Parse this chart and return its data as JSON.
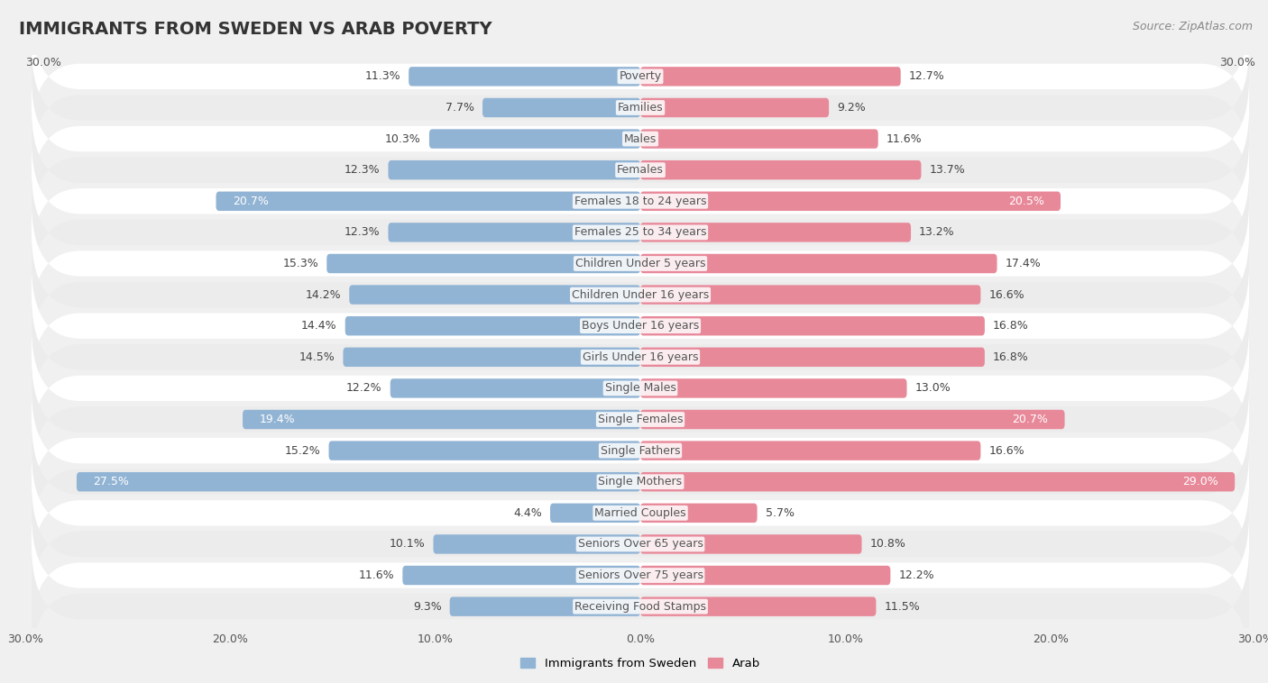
{
  "title": "IMMIGRANTS FROM SWEDEN VS ARAB POVERTY",
  "source": "Source: ZipAtlas.com",
  "categories": [
    "Poverty",
    "Families",
    "Males",
    "Females",
    "Females 18 to 24 years",
    "Females 25 to 34 years",
    "Children Under 5 years",
    "Children Under 16 years",
    "Boys Under 16 years",
    "Girls Under 16 years",
    "Single Males",
    "Single Females",
    "Single Fathers",
    "Single Mothers",
    "Married Couples",
    "Seniors Over 65 years",
    "Seniors Over 75 years",
    "Receiving Food Stamps"
  ],
  "sweden_values": [
    11.3,
    7.7,
    10.3,
    12.3,
    20.7,
    12.3,
    15.3,
    14.2,
    14.4,
    14.5,
    12.2,
    19.4,
    15.2,
    27.5,
    4.4,
    10.1,
    11.6,
    9.3
  ],
  "arab_values": [
    12.7,
    9.2,
    11.6,
    13.7,
    20.5,
    13.2,
    17.4,
    16.6,
    16.8,
    16.8,
    13.0,
    20.7,
    16.6,
    29.0,
    5.7,
    10.8,
    12.2,
    11.5
  ],
  "sweden_color": "#92b4d4",
  "arab_color": "#e8899a",
  "background_color": "#f0f0f0",
  "row_bg_light": "#f8f8f8",
  "row_bg_dark": "#e8e8e8",
  "xlim": 30.0,
  "legend_sweden": "Immigrants from Sweden",
  "legend_arab": "Arab",
  "title_fontsize": 14,
  "source_fontsize": 9,
  "axis_label_fontsize": 9,
  "bar_label_fontsize": 9,
  "category_fontsize": 9,
  "label_threshold": 18.0
}
